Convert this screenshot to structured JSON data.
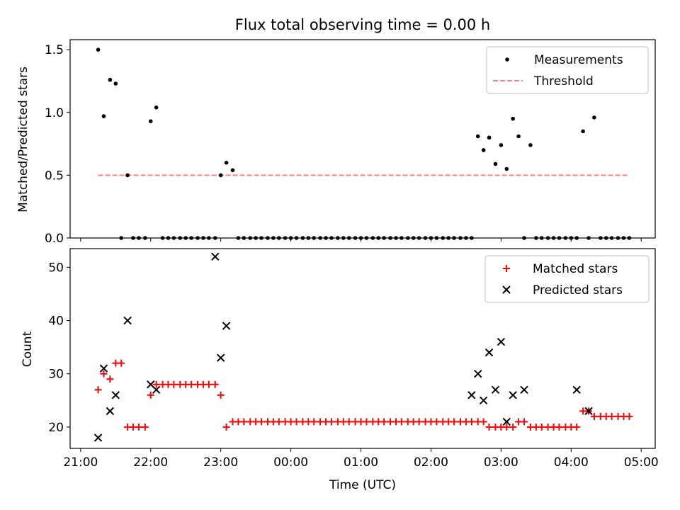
{
  "figure_title": "Flux total observing time = 0.00 h",
  "colors": {
    "measurement": "#000000",
    "threshold": "#ff8080",
    "matched": "#ff0000",
    "predicted": "#000000"
  },
  "chart_data": [
    {
      "type": "scatter",
      "ylabel": "Matched/Predicted stars",
      "xlabel": "",
      "xlim_hours": [
        -3.15,
        5.2
      ],
      "ylim": [
        0,
        1.58
      ],
      "yticks": [
        0.0,
        0.5,
        1.0,
        1.5
      ],
      "ytick_labels": [
        "0.0",
        "0.5",
        "1.0",
        "1.5"
      ],
      "legend_position": "top-right",
      "legend": {
        "measurements": "Measurements",
        "threshold": "Threshold"
      },
      "threshold": {
        "value": 0.5,
        "x_range_hours": [
          -2.75,
          4.83
        ]
      },
      "series": [
        {
          "name": "Measurements",
          "x_hours": [
            -2.75,
            -2.67,
            -2.58,
            -2.5,
            -2.42,
            -2.33,
            -2.25,
            -2.17,
            -2.08,
            -2.0,
            -1.92,
            -1.83,
            -1.75,
            -1.67,
            -1.58,
            -1.5,
            -1.42,
            -1.33,
            -1.25,
            -1.17,
            -1.08,
            -1.0,
            -0.92,
            -0.83,
            -0.75,
            -0.67,
            -0.58,
            -0.5,
            -0.42,
            -0.33,
            -0.25,
            -0.17,
            -0.08,
            0.0,
            0.08,
            0.17,
            0.25,
            0.33,
            0.42,
            0.5,
            0.58,
            0.67,
            0.75,
            0.83,
            0.92,
            1.0,
            1.08,
            1.17,
            1.25,
            1.33,
            1.42,
            1.5,
            1.58,
            1.67,
            1.75,
            1.83,
            1.92,
            2.0,
            2.08,
            2.17,
            2.25,
            2.33,
            2.42,
            2.5,
            2.58,
            2.67,
            2.75,
            2.83,
            2.92,
            3.0,
            3.08,
            3.17,
            3.25,
            3.33,
            3.42,
            3.5,
            3.58,
            3.67,
            3.75,
            3.83,
            3.92,
            4.0,
            4.08,
            4.17,
            4.25,
            4.33,
            4.42,
            4.5,
            4.58,
            4.67,
            4.75,
            4.83
          ],
          "y": [
            1.5,
            0.97,
            1.26,
            1.23,
            0.0,
            0.5,
            0.0,
            0.0,
            0.0,
            0.93,
            1.04,
            0.0,
            0.0,
            0.0,
            0.0,
            0.0,
            0.0,
            0.0,
            0.0,
            0.0,
            0.0,
            0.5,
            0.6,
            0.54,
            0.0,
            0.0,
            0.0,
            0.0,
            0.0,
            0.0,
            0.0,
            0.0,
            0.0,
            0.0,
            0.0,
            0.0,
            0.0,
            0.0,
            0.0,
            0.0,
            0.0,
            0.0,
            0.0,
            0.0,
            0.0,
            0.0,
            0.0,
            0.0,
            0.0,
            0.0,
            0.0,
            0.0,
            0.0,
            0.0,
            0.0,
            0.0,
            0.0,
            0.0,
            0.0,
            0.0,
            0.0,
            0.0,
            0.0,
            0.0,
            0.0,
            0.81,
            0.7,
            0.8,
            0.59,
            0.74,
            0.55,
            0.95,
            0.81,
            0.0,
            0.74,
            0.0,
            0.0,
            0.0,
            0.0,
            0.0,
            0.0,
            0.0,
            0.0,
            0.85,
            0.0,
            0.96,
            0.0,
            0.0,
            0.0,
            0.0,
            0.0,
            0.0
          ]
        }
      ]
    },
    {
      "type": "scatter",
      "ylabel": "Count",
      "xlabel": "Time (UTC)",
      "xlim_hours": [
        -3.15,
        5.2
      ],
      "ylim": [
        16,
        53.5
      ],
      "yticks": [
        20,
        30,
        40,
        50
      ],
      "ytick_labels": [
        "20",
        "30",
        "40",
        "50"
      ],
      "xticks_hours": [
        -3,
        -2,
        -1,
        0,
        1,
        2,
        3,
        4,
        5
      ],
      "xtick_labels": [
        "21:00",
        "22:00",
        "23:00",
        "00:00",
        "01:00",
        "02:00",
        "03:00",
        "04:00",
        "05:00"
      ],
      "legend_position": "top-right",
      "legend": {
        "matched": "Matched stars",
        "predicted": "Predicted stars"
      },
      "series": [
        {
          "name": "Matched stars",
          "x_hours": [
            -2.75,
            -2.67,
            -2.58,
            -2.5,
            -2.42,
            -2.33,
            -2.25,
            -2.17,
            -2.08,
            -2.0,
            -1.92,
            -1.83,
            -1.75,
            -1.67,
            -1.58,
            -1.5,
            -1.42,
            -1.33,
            -1.25,
            -1.17,
            -1.08,
            -1.0,
            -0.92,
            -0.83,
            -0.75,
            -0.67,
            -0.58,
            -0.5,
            -0.42,
            -0.33,
            -0.25,
            -0.17,
            -0.08,
            0.0,
            0.08,
            0.17,
            0.25,
            0.33,
            0.42,
            0.5,
            0.58,
            0.67,
            0.75,
            0.83,
            0.92,
            1.0,
            1.08,
            1.17,
            1.25,
            1.33,
            1.42,
            1.5,
            1.58,
            1.67,
            1.75,
            1.83,
            1.92,
            2.0,
            2.08,
            2.17,
            2.25,
            2.33,
            2.42,
            2.5,
            2.58,
            2.67,
            2.75,
            2.83,
            2.92,
            3.0,
            3.08,
            3.17,
            3.25,
            3.33,
            3.42,
            3.5,
            3.58,
            3.67,
            3.75,
            3.83,
            3.92,
            4.0,
            4.08,
            4.17,
            4.25,
            4.33,
            4.42,
            4.5,
            4.58,
            4.67,
            4.75,
            4.83
          ],
          "y": [
            27,
            30,
            29,
            32,
            32,
            20,
            20,
            20,
            20,
            26,
            28,
            28,
            28,
            28,
            28,
            28,
            28,
            28,
            28,
            28,
            28,
            26,
            20,
            21,
            21,
            21,
            21,
            21,
            21,
            21,
            21,
            21,
            21,
            21,
            21,
            21,
            21,
            21,
            21,
            21,
            21,
            21,
            21,
            21,
            21,
            21,
            21,
            21,
            21,
            21,
            21,
            21,
            21,
            21,
            21,
            21,
            21,
            21,
            21,
            21,
            21,
            21,
            21,
            21,
            21,
            21,
            21,
            20,
            20,
            20,
            20,
            20,
            21,
            21,
            20,
            20,
            20,
            20,
            20,
            20,
            20,
            20,
            20,
            23,
            23,
            22,
            22,
            22,
            22,
            22,
            22,
            22
          ]
        },
        {
          "name": "Predicted stars",
          "x_hours": [
            -2.75,
            -2.67,
            -2.58,
            -2.5,
            -2.33,
            -2.0,
            -1.92,
            -1.08,
            -1.0,
            -0.92,
            2.58,
            2.67,
            2.75,
            2.83,
            2.92,
            3.0,
            3.08,
            3.17,
            3.33,
            4.08,
            4.25
          ],
          "y": [
            18,
            31,
            23,
            26,
            40,
            28,
            27,
            52,
            33,
            39,
            26,
            30,
            25,
            34,
            27,
            36,
            21,
            26,
            27,
            27,
            23
          ]
        }
      ]
    }
  ]
}
